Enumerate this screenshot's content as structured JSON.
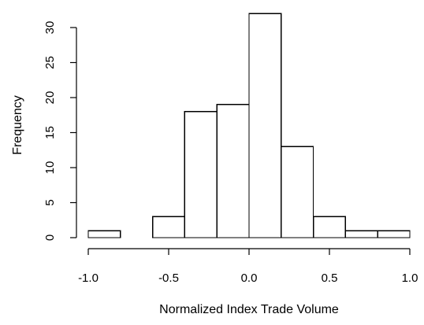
{
  "chart_data": {
    "type": "bar",
    "subtype": "histogram",
    "title": "",
    "xlabel": "Normalized Index Trade Volume",
    "ylabel": "Frequency",
    "bins": [
      {
        "start": -1.0,
        "end": -0.8,
        "count": 1
      },
      {
        "start": -0.8,
        "end": -0.6,
        "count": 0
      },
      {
        "start": -0.6,
        "end": -0.4,
        "count": 3
      },
      {
        "start": -0.4,
        "end": -0.2,
        "count": 18
      },
      {
        "start": -0.2,
        "end": 0.0,
        "count": 19
      },
      {
        "start": 0.0,
        "end": 0.2,
        "count": 32
      },
      {
        "start": 0.2,
        "end": 0.4,
        "count": 13
      },
      {
        "start": 0.4,
        "end": 0.6,
        "count": 3
      },
      {
        "start": 0.6,
        "end": 0.8,
        "count": 1
      },
      {
        "start": 0.8,
        "end": 1.0,
        "count": 1
      }
    ],
    "xlim": [
      -1.0,
      1.0
    ],
    "ylim": [
      0,
      32
    ],
    "x_ticks": [
      -1.0,
      -0.5,
      0.0,
      0.5,
      1.0
    ],
    "x_tick_labels": [
      "-1.0",
      "-0.5",
      "0.0",
      "0.5",
      "1.0"
    ],
    "y_ticks": [
      0,
      5,
      10,
      15,
      20,
      25,
      30
    ],
    "y_tick_labels": [
      "0",
      "5",
      "10",
      "15",
      "20",
      "25",
      "30"
    ],
    "grid": false,
    "colors": {
      "bar_fill": "#ffffff",
      "bar_stroke": "#000000",
      "axis": "#000000"
    }
  }
}
